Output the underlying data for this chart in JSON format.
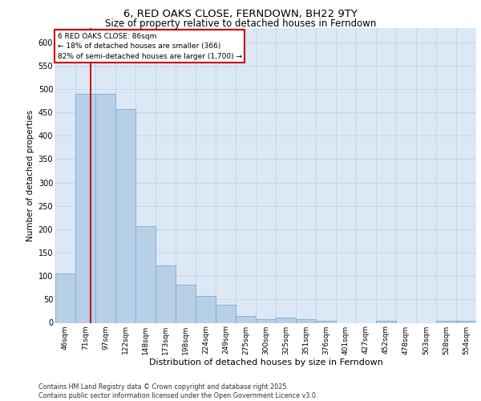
{
  "title_line1": "6, RED OAKS CLOSE, FERNDOWN, BH22 9TY",
  "title_line2": "Size of property relative to detached houses in Ferndown",
  "xlabel": "Distribution of detached houses by size in Ferndown",
  "ylabel": "Number of detached properties",
  "categories": [
    "46sqm",
    "71sqm",
    "97sqm",
    "122sqm",
    "148sqm",
    "173sqm",
    "198sqm",
    "224sqm",
    "249sqm",
    "275sqm",
    "300sqm",
    "325sqm",
    "351sqm",
    "376sqm",
    "401sqm",
    "427sqm",
    "452sqm",
    "478sqm",
    "503sqm",
    "528sqm",
    "554sqm"
  ],
  "values": [
    105,
    490,
    490,
    457,
    207,
    122,
    82,
    57,
    39,
    14,
    8,
    11,
    8,
    4,
    0,
    0,
    5,
    0,
    0,
    5,
    5
  ],
  "bar_color": "#b8cfe8",
  "bar_edge_color": "#7aaad0",
  "grid_color": "#c5d5e8",
  "bg_color": "#dce8f5",
  "vline_color": "#cc0000",
  "vline_x": 1.27,
  "annotation_text": "6 RED OAKS CLOSE: 86sqm\n← 18% of detached houses are smaller (366)\n82% of semi-detached houses are larger (1,700) →",
  "annotation_box_color": "#cc0000",
  "footer": "Contains HM Land Registry data © Crown copyright and database right 2025.\nContains public sector information licensed under the Open Government Licence v3.0.",
  "ylim": [
    0,
    630
  ],
  "yticks": [
    0,
    50,
    100,
    150,
    200,
    250,
    300,
    350,
    400,
    450,
    500,
    550,
    600
  ]
}
